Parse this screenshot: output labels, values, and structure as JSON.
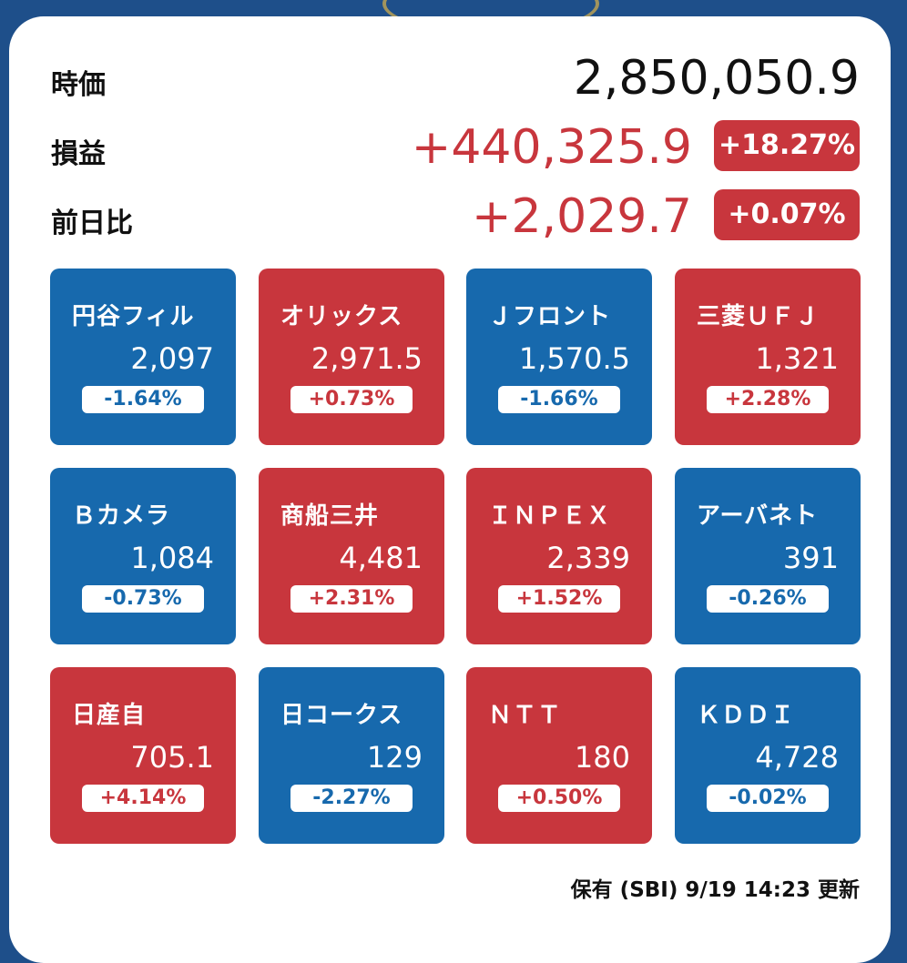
{
  "summary": {
    "market_value": {
      "label": "時価",
      "value": "2,850,050.9"
    },
    "profit_loss": {
      "label": "損益",
      "value": "+440,325.9",
      "pct": "+18.27%"
    },
    "day_change": {
      "label": "前日比",
      "value": "+2,029.7",
      "pct": "+0.07%"
    }
  },
  "colors": {
    "up": "#c8363d",
    "down": "#1769ad"
  },
  "stocks": [
    {
      "name": "円谷フィル",
      "price": "2,097",
      "change": "-1.64%",
      "direction": "down"
    },
    {
      "name": "オリックス",
      "price": "2,971.5",
      "change": "+0.73%",
      "direction": "up"
    },
    {
      "name": "Ｊフロント",
      "price": "1,570.5",
      "change": "-1.66%",
      "direction": "down"
    },
    {
      "name": "三菱ＵＦＪ",
      "price": "1,321",
      "change": "+2.28%",
      "direction": "up"
    },
    {
      "name": "Ｂカメラ",
      "price": "1,084",
      "change": "-0.73%",
      "direction": "down"
    },
    {
      "name": "商船三井",
      "price": "4,481",
      "change": "+2.31%",
      "direction": "up"
    },
    {
      "name": "ＩＮＰＥＸ",
      "price": "2,339",
      "change": "+1.52%",
      "direction": "up"
    },
    {
      "name": "アーバネト",
      "price": "391",
      "change": "-0.26%",
      "direction": "down"
    },
    {
      "name": "日産自",
      "price": "705.1",
      "change": "+4.14%",
      "direction": "up"
    },
    {
      "name": "日コークス",
      "price": "129",
      "change": "-2.27%",
      "direction": "down"
    },
    {
      "name": "ＮＴＴ",
      "price": "180",
      "change": "+0.50%",
      "direction": "up"
    },
    {
      "name": "ＫＤＤＩ",
      "price": "4,728",
      "change": "-0.02%",
      "direction": "down"
    }
  ],
  "footer": {
    "text": "保有 (SBI) 9/19 14:23 更新"
  }
}
